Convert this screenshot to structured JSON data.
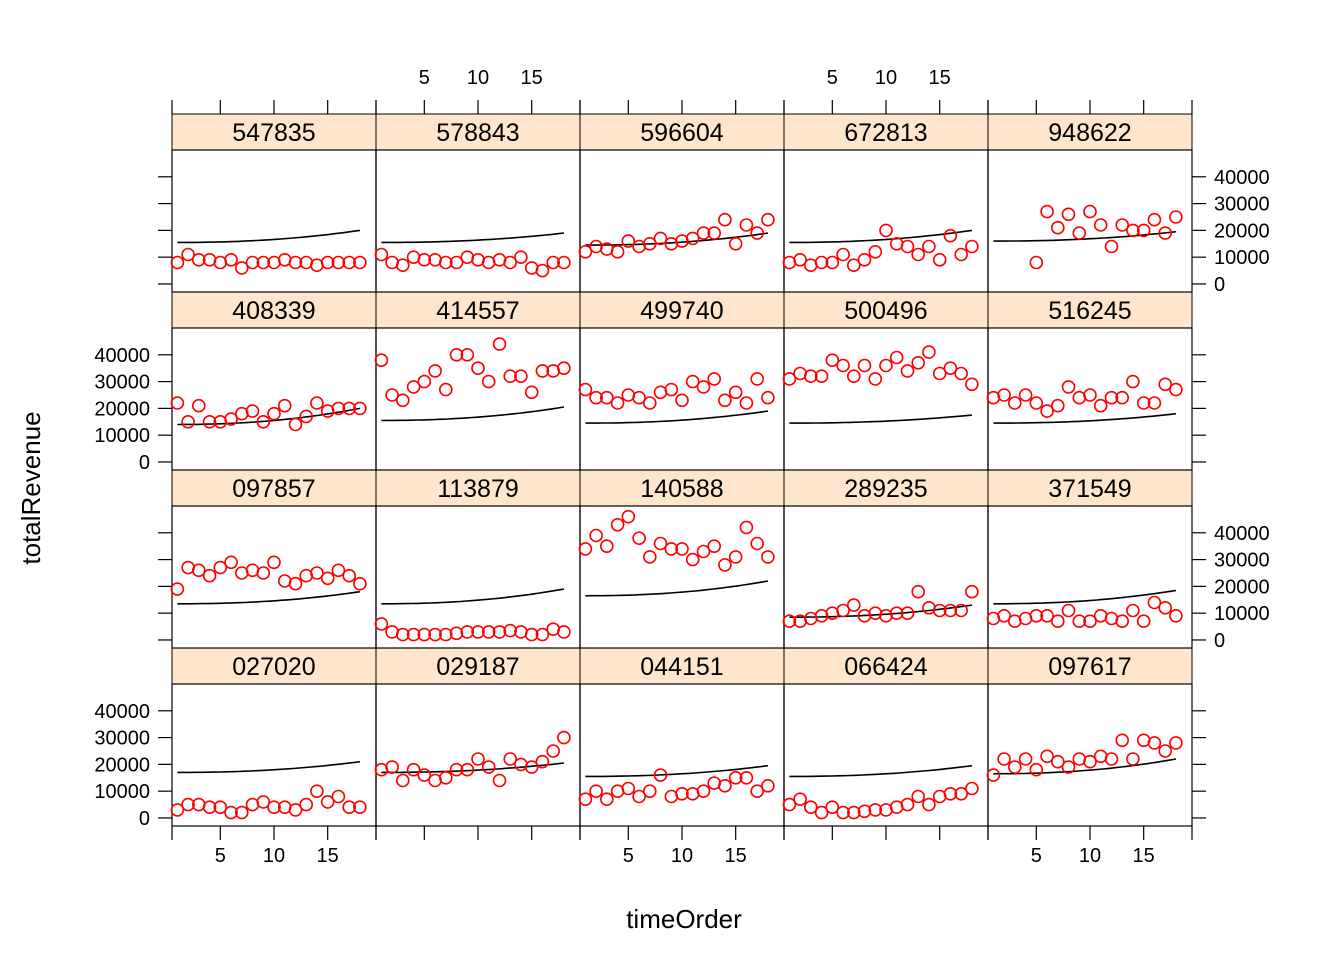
{
  "chart_data": {
    "type": "scatter",
    "layout": "trellis",
    "xlabel": "timeOrder",
    "ylabel": "totalRevenue",
    "xlim": [
      0.5,
      19.5
    ],
    "ylim": [
      -3000,
      50000
    ],
    "x_ticks": [
      5,
      10,
      15
    ],
    "y_ticks": [
      0,
      10000,
      20000,
      30000,
      40000
    ],
    "point_color": "#ff0000",
    "line_color": "#000000",
    "strip_color": "#ffe5cc",
    "panels": [
      {
        "label": "027020",
        "values": [
          3000,
          5000,
          5000,
          4000,
          4000,
          2000,
          2000,
          5000,
          6000,
          4000,
          4000,
          3000,
          5000,
          10000,
          6000,
          8000,
          4000,
          4000
        ],
        "fit_start": 17000,
        "fit_end": 21000
      },
      {
        "label": "029187",
        "values": [
          18000,
          19000,
          14000,
          18000,
          16000,
          14000,
          15000,
          18000,
          18000,
          22000,
          19000,
          14000,
          22000,
          20000,
          19000,
          21000,
          25000,
          30000
        ],
        "fit_start": 17000,
        "fit_end": 20500
      },
      {
        "label": "044151",
        "values": [
          7000,
          10000,
          7000,
          10000,
          11000,
          8000,
          10000,
          16000,
          8000,
          9000,
          9000,
          10000,
          13000,
          12000,
          15000,
          15000,
          10000,
          12000
        ],
        "fit_start": 15500,
        "fit_end": 19500
      },
      {
        "label": "066424",
        "values": [
          5000,
          7000,
          4000,
          2000,
          4000,
          2000,
          2000,
          2500,
          3000,
          3000,
          4000,
          5000,
          8000,
          5000,
          8000,
          9000,
          9000,
          11000
        ],
        "fit_start": 15500,
        "fit_end": 19500
      },
      {
        "label": "097617",
        "values": [
          16000,
          22000,
          19000,
          22000,
          18000,
          23000,
          21000,
          19000,
          22000,
          21000,
          23000,
          22000,
          29000,
          22000,
          29000,
          28000,
          25000,
          28000
        ],
        "fit_start": 16500,
        "fit_end": 22000
      },
      {
        "label": "097857",
        "values": [
          19000,
          27000,
          26000,
          24000,
          27000,
          29000,
          25000,
          26000,
          25000,
          29000,
          22000,
          21000,
          24000,
          25000,
          23000,
          26000,
          24000,
          21000
        ],
        "fit_start": 13500,
        "fit_end": 18000
      },
      {
        "label": "113879",
        "values": null,
        "fit_start": 13500,
        "fit_end": 19000
      },
      {
        "label": "140588",
        "values": [
          34000,
          39000,
          35000,
          43000,
          46000,
          38000,
          31000,
          36000,
          34000,
          34000,
          30000,
          33000,
          35000,
          28000,
          31000,
          42000,
          36000,
          31000
        ],
        "fit_start": 16500,
        "fit_end": 22000
      },
      {
        "label": "289235",
        "values": [
          7000,
          7000,
          8000,
          9000,
          10000,
          11000,
          13000,
          9000,
          10000,
          9000,
          10000,
          10000,
          18000,
          12000,
          11000,
          11000,
          11000,
          18000
        ],
        "fit_start": 8500,
        "fit_end": 13000
      },
      {
        "label": "371549",
        "values": [
          8000,
          9000,
          7000,
          8000,
          9000,
          9000,
          7000,
          11000,
          7000,
          7000,
          9000,
          8000,
          7000,
          11000,
          7000,
          14000,
          12000,
          9000
        ],
        "fit_start": 13500,
        "fit_end": 18500
      },
      {
        "label": "408339",
        "values": [
          22000,
          15000,
          21000,
          15000,
          15000,
          16000,
          18000,
          19000,
          15000,
          18000,
          21000,
          14000,
          17000,
          22000,
          19000,
          20000,
          20000,
          20000
        ],
        "fit_start": 14000,
        "fit_end": 20000
      },
      {
        "label": "414557",
        "values": [
          38000,
          25000,
          23000,
          28000,
          30000,
          34000,
          27000,
          40000,
          40000,
          35000,
          30000,
          44000,
          32000,
          32000,
          26000,
          34000,
          34000,
          35000
        ],
        "fit_start": 15500,
        "fit_end": 20500
      },
      {
        "label": "499740",
        "values": [
          27000,
          24000,
          24000,
          22000,
          25000,
          24000,
          22000,
          26000,
          27000,
          23000,
          30000,
          28000,
          31000,
          23000,
          26000,
          22000,
          31000,
          24000
        ],
        "fit_start": 14500,
        "fit_end": 19000
      },
      {
        "label": "500496",
        "values": [
          31000,
          33000,
          32000,
          32000,
          38000,
          36000,
          32000,
          36000,
          31000,
          36000,
          39000,
          34000,
          37000,
          41000,
          33000,
          35000,
          33000,
          29000
        ],
        "fit_start": 14500,
        "fit_end": 17500
      },
      {
        "label": "516245",
        "values": [
          24000,
          25000,
          22000,
          25000,
          22000,
          19000,
          21000,
          28000,
          24000,
          25000,
          21000,
          24000,
          24000,
          30000,
          22000,
          22000,
          29000,
          27000
        ],
        "fit_start": 14500,
        "fit_end": 18000
      },
      {
        "label": "547835",
        "values": [
          8000,
          11000,
          9000,
          9000,
          8000,
          9000,
          6000,
          8000,
          8000,
          8000,
          9000,
          8000,
          8000,
          7000,
          8000,
          8000,
          8000,
          8000
        ],
        "fit_start": 15500,
        "fit_end": 20000
      },
      {
        "label": "578843",
        "values": [
          11000,
          8000,
          7000,
          10000,
          9000,
          9000,
          8000,
          8000,
          10000,
          9000,
          8000,
          9000,
          8000,
          10000,
          6000,
          5000,
          8000,
          8000
        ],
        "fit_start": 15500,
        "fit_end": 19000
      },
      {
        "label": "596604",
        "values": [
          12000,
          14000,
          13000,
          12000,
          16000,
          14000,
          15000,
          17000,
          15000,
          16000,
          17000,
          19000,
          19000,
          24000,
          15000,
          22000,
          19000,
          24000
        ],
        "fit_start": 14500,
        "fit_end": 19000
      },
      {
        "label": "672813",
        "values": [
          8000,
          9000,
          7000,
          8000,
          8000,
          11000,
          7000,
          9000,
          12000,
          20000,
          15000,
          14000,
          11000,
          14000,
          9000,
          18000,
          11000,
          14000
        ],
        "fit_start": 15500,
        "fit_end": 20000
      },
      {
        "label": "948622",
        "values": [
          null,
          null,
          null,
          null,
          8000,
          27000,
          21000,
          26000,
          19000,
          27000,
          22000,
          14000,
          22000,
          20000,
          20000,
          24000,
          19000,
          25000
        ],
        "fit_start": 16000,
        "fit_end": 19500
      }
    ]
  }
}
